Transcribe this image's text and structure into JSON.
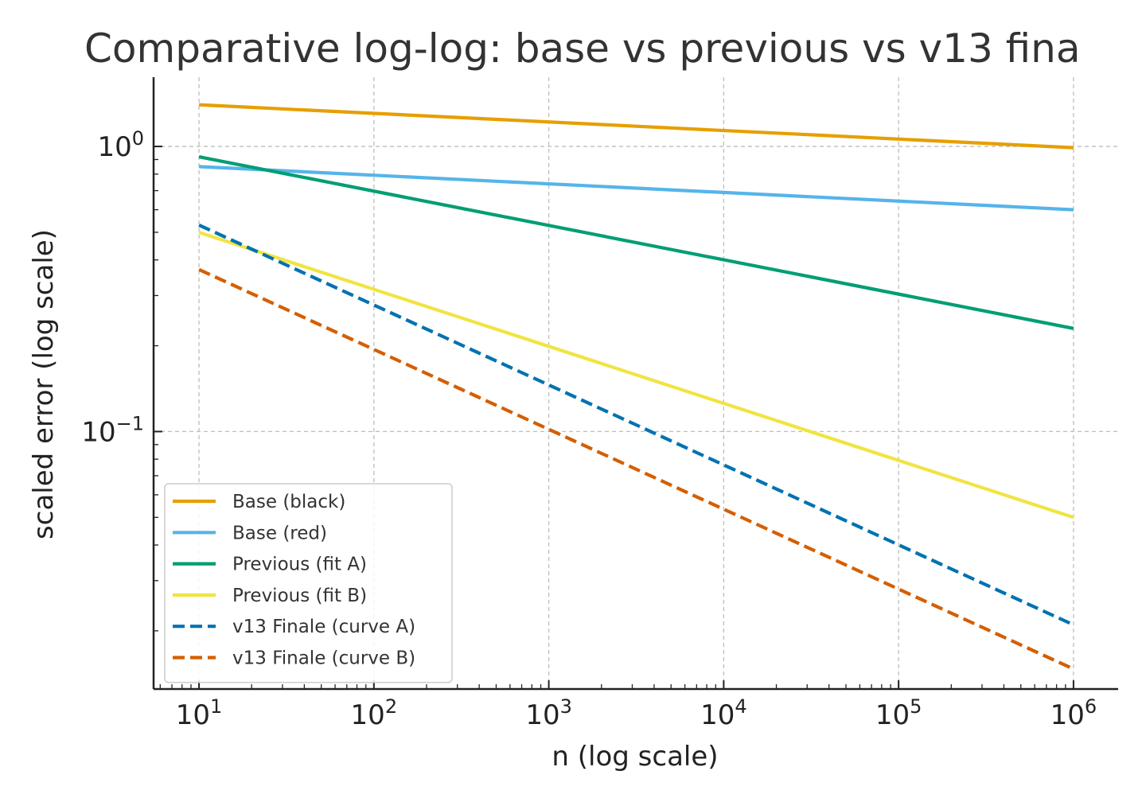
{
  "chart_data": {
    "type": "line",
    "title": "Comparative log-log: base vs previous vs v13 fina",
    "xlabel": "n (log scale)",
    "ylabel": "scaled error (log scale)",
    "xscale": "log",
    "yscale": "log",
    "xlim": [
      5.5,
      1800000
    ],
    "ylim": [
      0.0125,
      1.75
    ],
    "x_ticks": [
      {
        "value": 10,
        "base": "10",
        "exp": "1"
      },
      {
        "value": 100,
        "base": "10",
        "exp": "2"
      },
      {
        "value": 1000,
        "base": "10",
        "exp": "3"
      },
      {
        "value": 10000,
        "base": "10",
        "exp": "4"
      },
      {
        "value": 100000,
        "base": "10",
        "exp": "5"
      },
      {
        "value": 1000000,
        "base": "10",
        "exp": "6"
      }
    ],
    "y_ticks": [
      {
        "value": 1,
        "base": "10",
        "exp": "0"
      },
      {
        "value": 0.1,
        "base": "10",
        "exp": "−1"
      }
    ],
    "grid": true,
    "legend_position": "lower-left",
    "x": [
      10,
      1000000
    ],
    "series": [
      {
        "name": "Base (black)",
        "values": [
          1.4,
          0.99
        ],
        "color": "#E69F00",
        "style": "solid"
      },
      {
        "name": "Base (red)",
        "values": [
          0.85,
          0.6
        ],
        "color": "#56B4E9",
        "style": "solid"
      },
      {
        "name": "Previous (fit A)",
        "values": [
          0.92,
          0.23
        ],
        "color": "#009E73",
        "style": "solid"
      },
      {
        "name": "Previous (fit B)",
        "values": [
          0.5,
          0.05
        ],
        "color": "#F0E442",
        "style": "solid"
      },
      {
        "name": "v13 Finale (curve A)",
        "values": [
          0.53,
          0.021
        ],
        "color": "#0072B2",
        "style": "dashed"
      },
      {
        "name": "v13 Finale (curve B)",
        "values": [
          0.37,
          0.0147
        ],
        "color": "#D55E00",
        "style": "dashed"
      }
    ]
  }
}
